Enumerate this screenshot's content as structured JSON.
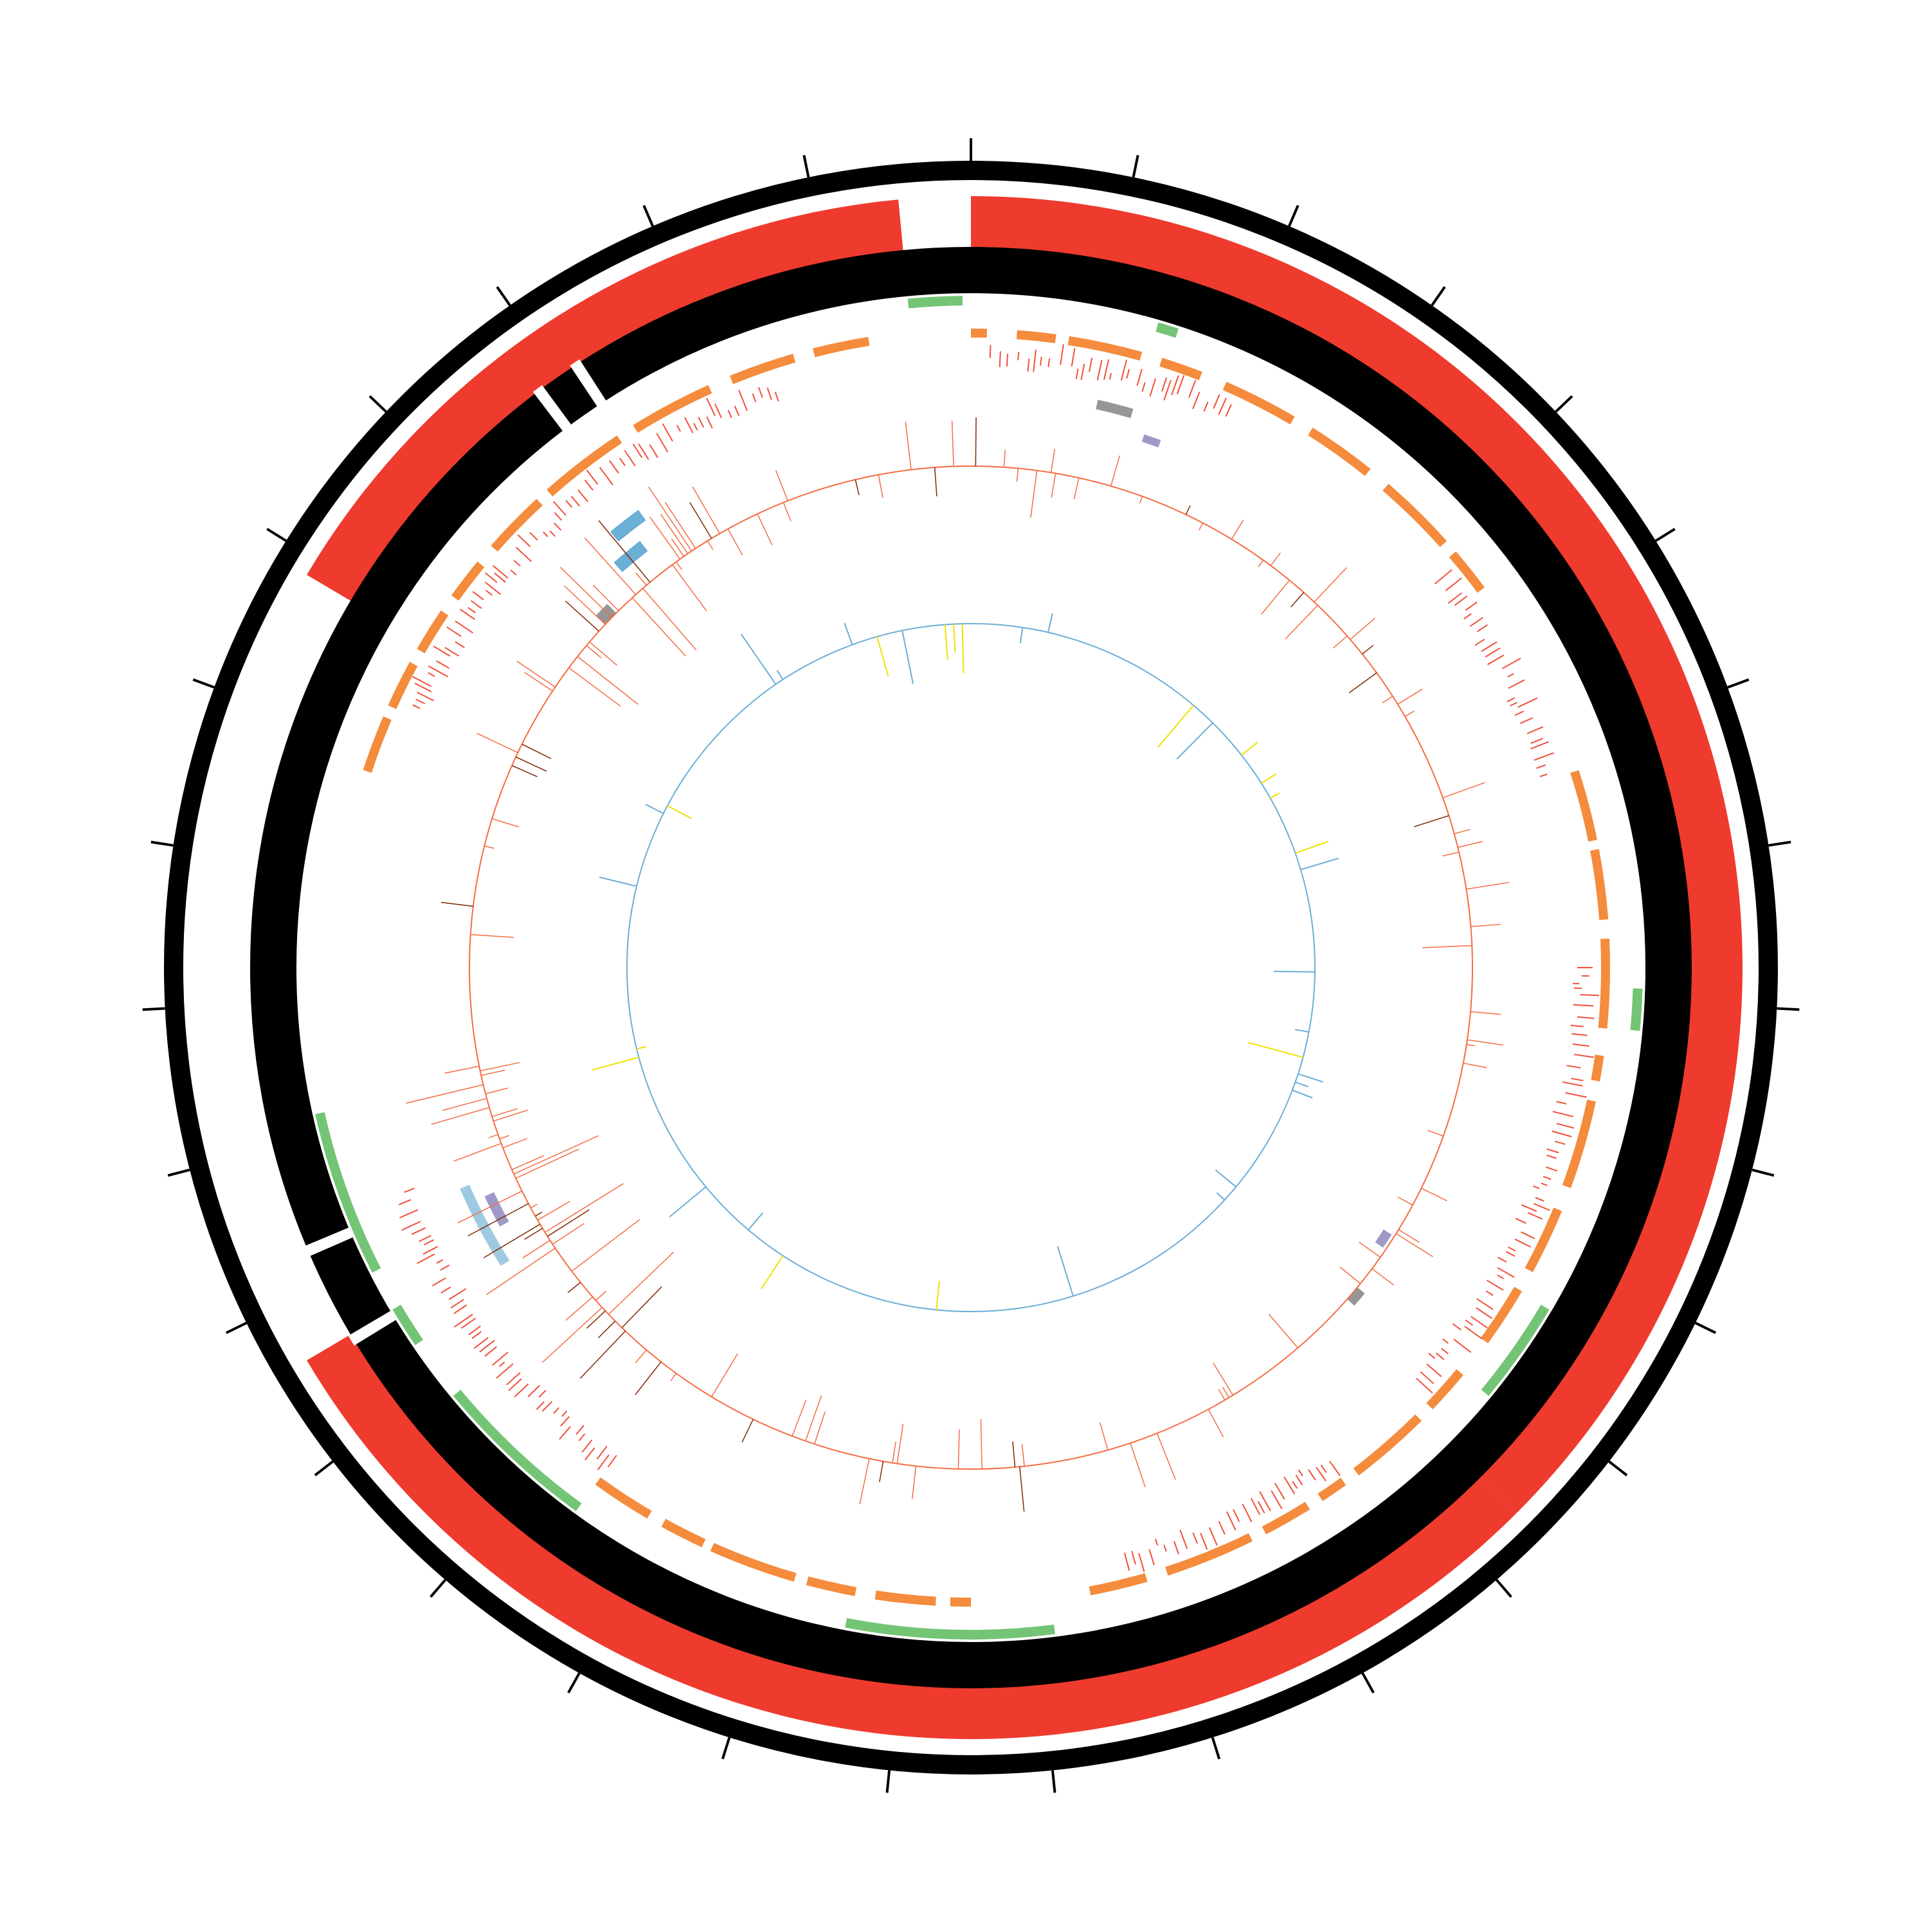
{
  "colors": {
    "background": "#ffffff",
    "outline": "#000000",
    "coverage": "#ee3b2e",
    "gene_blocks": "#f58b3c",
    "gene_ticks": "#f0503a",
    "green_blocks": "#74c476",
    "blue_blocks": "#6baed6",
    "light_blue_blocks": "#9ecae1",
    "purple_blocks": "#9e9ac8",
    "gray_blocks": "#969696",
    "histogram": "#f46d43",
    "histogram_dark": "#7f2704",
    "inner_ring": "#6baed6",
    "inner_spikes_yellow": "#f0e000"
  },
  "tick_count": 31,
  "tracks": [
    "ideogram",
    "coverage",
    "backbone",
    "green-segments",
    "orange-segments",
    "red-ticks",
    "small-features",
    "line-histogram",
    "inner-line-plot"
  ],
  "coverage_arcs": [
    [
      0,
      0.375
    ],
    [
      0.375,
      0.665
    ],
    [
      0.835,
      0.985
    ]
  ],
  "green_arcs": [
    [
      0.985,
      0.998
    ],
    [
      0.045,
      0.05
    ],
    [
      0.6,
      0.64
    ],
    [
      0.675,
      0.715
    ],
    [
      0.655,
      0.665
    ],
    [
      0.255,
      0.265
    ],
    [
      0.335,
      0.36
    ],
    [
      0.48,
      0.53
    ]
  ]
}
